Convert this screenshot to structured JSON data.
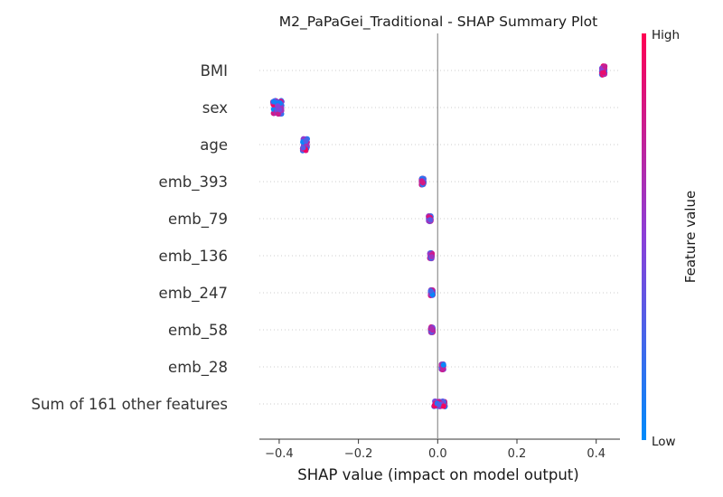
{
  "chart_data": {
    "type": "scatter",
    "title": "M2_PaPaGei_Traditional - SHAP Summary Plot",
    "xlabel": "SHAP value (impact on model output)",
    "xlim": [
      -0.45,
      0.46
    ],
    "xticks": [
      -0.4,
      -0.2,
      0.0,
      0.2,
      0.4
    ],
    "xtick_labels": [
      "−0.4",
      "−0.2",
      "0.0",
      "0.2",
      "0.4"
    ],
    "grid": false,
    "colorbar": {
      "label": "Feature value",
      "high": "High",
      "low": "Low",
      "low_color": "#008bfb",
      "high_color": "#ff0052"
    },
    "features": [
      {
        "name": "BMI",
        "center": 0.418,
        "spread": 0.004,
        "jitter": 0.11
      },
      {
        "name": "sex",
        "center": -0.405,
        "spread": 0.012,
        "jitter": 0.17
      },
      {
        "name": "age",
        "center": -0.335,
        "spread": 0.006,
        "jitter": 0.15
      },
      {
        "name": "emb_393",
        "center": -0.038,
        "spread": 0.003,
        "jitter": 0.08
      },
      {
        "name": "emb_79",
        "center": -0.02,
        "spread": 0.003,
        "jitter": 0.07
      },
      {
        "name": "emb_136",
        "center": -0.017,
        "spread": 0.003,
        "jitter": 0.07
      },
      {
        "name": "emb_247",
        "center": -0.015,
        "spread": 0.003,
        "jitter": 0.07
      },
      {
        "name": "emb_58",
        "center": -0.015,
        "spread": 0.003,
        "jitter": 0.07
      },
      {
        "name": "emb_28",
        "center": 0.012,
        "spread": 0.003,
        "jitter": 0.07
      },
      {
        "name": "Sum of 161 other features",
        "center": 0.005,
        "spread": 0.015,
        "jitter": 0.07
      }
    ]
  }
}
